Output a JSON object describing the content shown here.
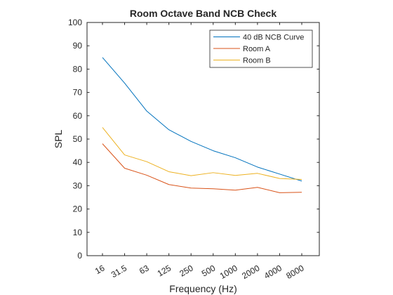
{
  "chart_data": {
    "type": "line",
    "title": "Room Octave Band NCB Check",
    "xlabel": "Frequency (Hz)",
    "ylabel": "SPL",
    "categories": [
      "16",
      "31.5",
      "63",
      "125",
      "250",
      "500",
      "1000",
      "2000",
      "4000",
      "8000"
    ],
    "ylim": [
      0,
      100
    ],
    "yticks": [
      0,
      10,
      20,
      30,
      40,
      50,
      60,
      70,
      80,
      90,
      100
    ],
    "grid": false,
    "legend_position": "top-right",
    "series": [
      {
        "name": "40 dB NCB Curve",
        "color": "#0072BD",
        "values": [
          85,
          74,
          62,
          54,
          49,
          45,
          42,
          38,
          35,
          32
        ]
      },
      {
        "name": "Room A",
        "color": "#D95319",
        "values": [
          48,
          37.5,
          34.5,
          30.5,
          29,
          28.7,
          28.1,
          29.3,
          27,
          27.2
        ]
      },
      {
        "name": "Room B",
        "color": "#EDB120",
        "values": [
          55,
          43.2,
          40.3,
          36,
          34.3,
          35.6,
          34.4,
          35.3,
          33.1,
          32.7
        ]
      }
    ]
  }
}
